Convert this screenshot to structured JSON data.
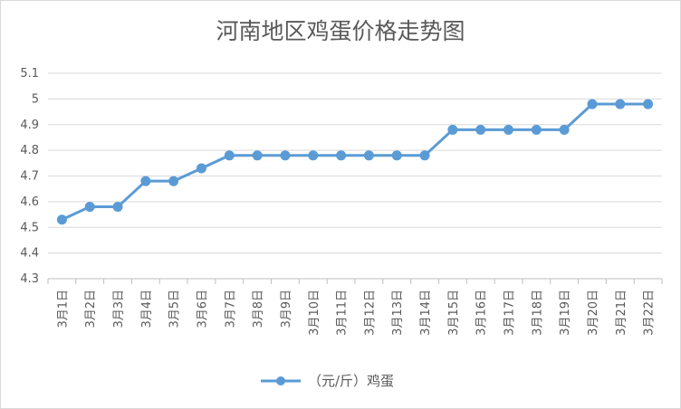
{
  "chart_data": {
    "type": "line",
    "title": "河南地区鸡蛋价格走势图",
    "xlabel": "",
    "ylabel": "",
    "categories": [
      "3月1日",
      "3月2日",
      "3月3日",
      "3月4日",
      "3月5日",
      "3月6日",
      "3月7日",
      "3月8日",
      "3月9日",
      "3月10日",
      "3月11日",
      "3月12日",
      "3月13日",
      "3月14日",
      "3月15日",
      "3月16日",
      "3月17日",
      "3月18日",
      "3月19日",
      "3月20日",
      "3月21日",
      "3月22日"
    ],
    "series": [
      {
        "name": "（元/斤）鸡蛋",
        "color": "#5b9bd5",
        "values": [
          4.53,
          4.58,
          4.58,
          4.68,
          4.68,
          4.73,
          4.78,
          4.78,
          4.78,
          4.78,
          4.78,
          4.78,
          4.78,
          4.78,
          4.88,
          4.88,
          4.88,
          4.88,
          4.88,
          4.98,
          4.98,
          4.98
        ]
      }
    ],
    "ylim": [
      4.3,
      5.1
    ],
    "yticks": [
      "4.3",
      "4.4",
      "4.5",
      "4.6",
      "4.7",
      "4.8",
      "4.9",
      "5",
      "5.1"
    ],
    "grid": true,
    "legend": "bottom"
  }
}
